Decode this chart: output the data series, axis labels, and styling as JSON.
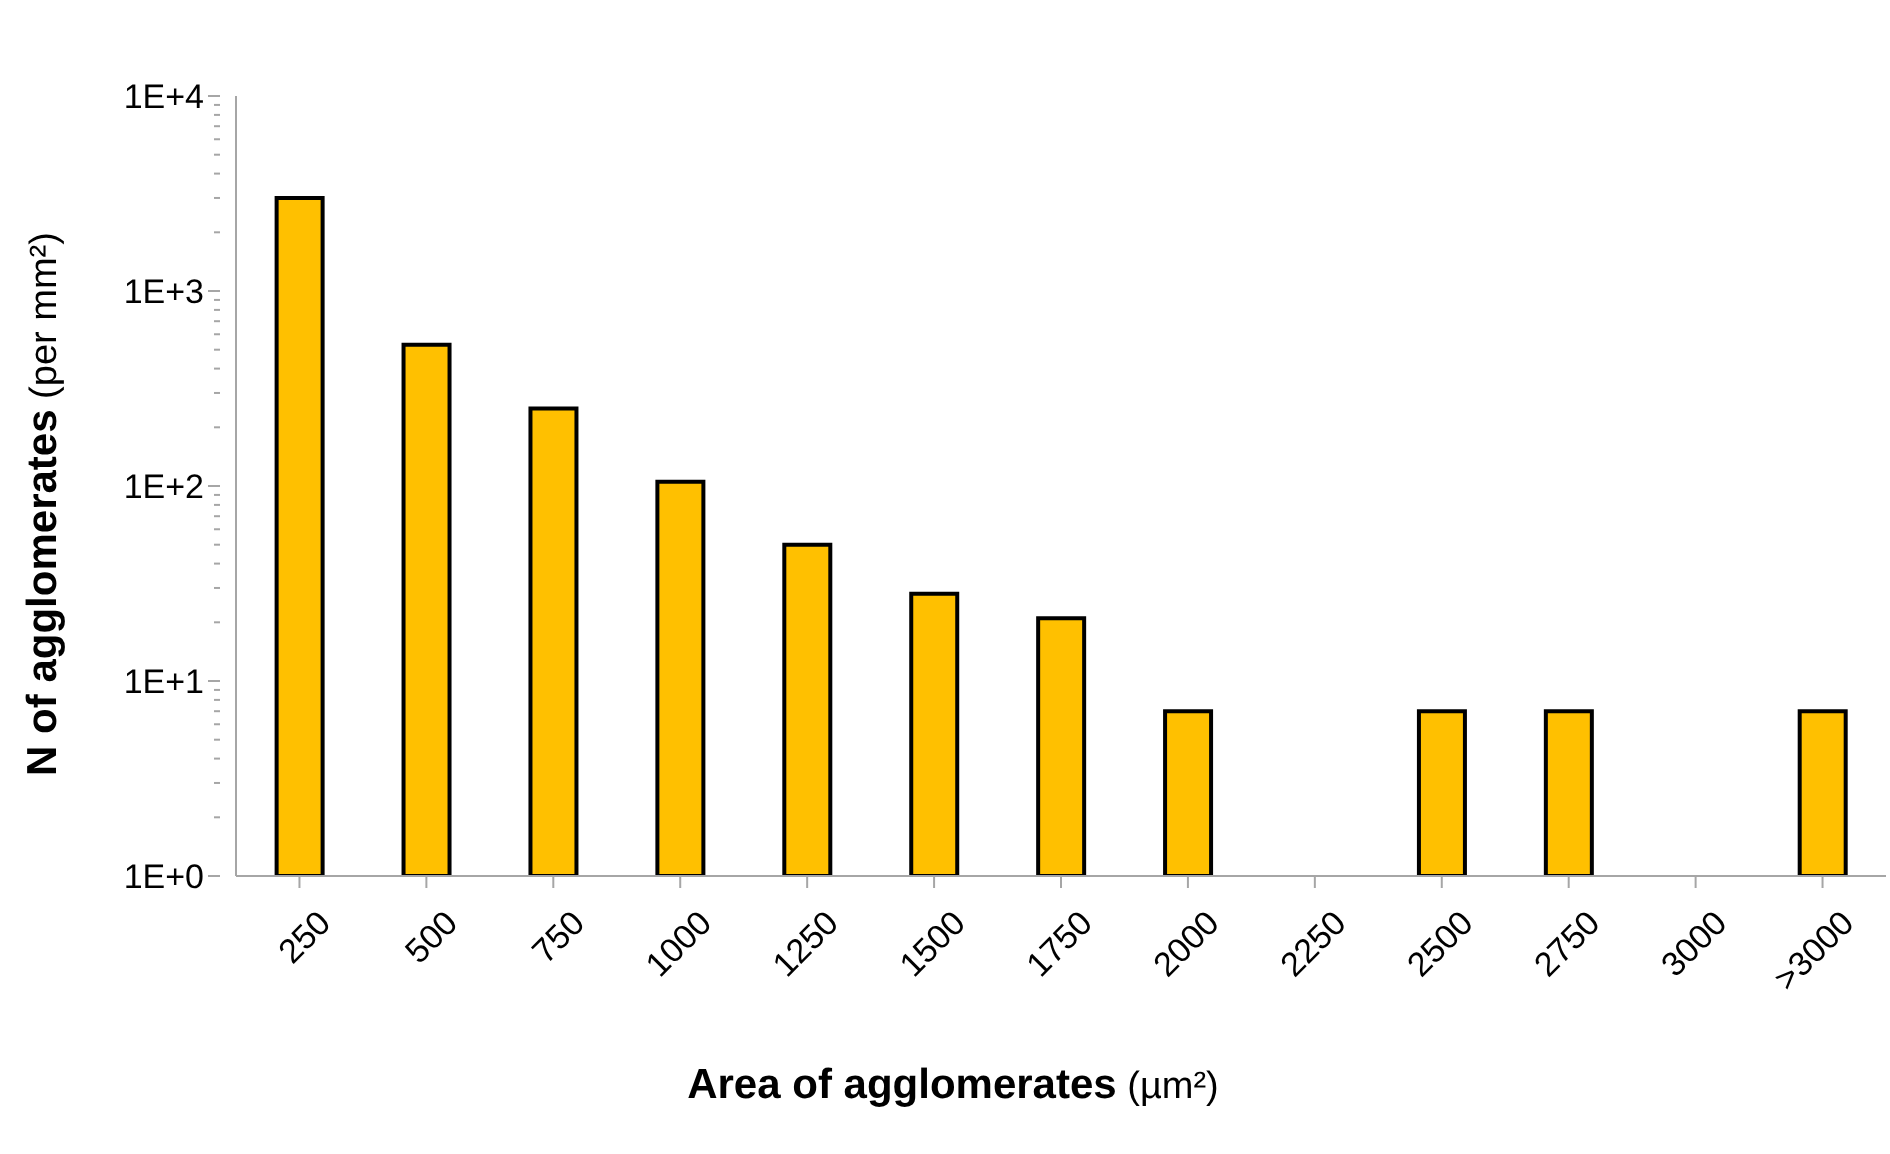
{
  "chart_data": {
    "type": "bar",
    "xlabel": "Area of agglomerates (µm²)",
    "ylabel": "N of agglomerates (per mm²)",
    "categories": [
      "250",
      "500",
      "750",
      "1000",
      "1250",
      "1500",
      "1750",
      "2000",
      "2250",
      "2500",
      "2750",
      "3000",
      ">3000"
    ],
    "values": [
      3000,
      530,
      250,
      105,
      50,
      28,
      21,
      7,
      null,
      7,
      7,
      null,
      7
    ],
    "color": "#ffc000",
    "log": true,
    "ylim": [
      1,
      10000
    ],
    "yticks": [
      {
        "value": 1,
        "label": "1E+0"
      },
      {
        "value": 2,
        "label": null
      },
      {
        "value": 3,
        "label": null
      },
      {
        "value": 4,
        "label": null
      },
      {
        "value": 5,
        "label": null
      },
      {
        "value": 6,
        "label": null
      },
      {
        "value": 7,
        "label": null
      },
      {
        "value": 8,
        "label": null
      },
      {
        "value": 9,
        "label": null
      },
      {
        "value": 10,
        "label": "1E+1"
      },
      {
        "value": 20,
        "label": null
      },
      {
        "value": 30,
        "label": null
      },
      {
        "value": 40,
        "label": null
      },
      {
        "value": 50,
        "label": null
      },
      {
        "value": 60,
        "label": null
      },
      {
        "value": 70,
        "label": null
      },
      {
        "value": 80,
        "label": null
      },
      {
        "value": 90,
        "label": null
      },
      {
        "value": 100,
        "label": "1E+2"
      },
      {
        "value": 200,
        "label": null
      },
      {
        "value": 300,
        "label": null
      },
      {
        "value": 400,
        "label": null
      },
      {
        "value": 500,
        "label": null
      },
      {
        "value": 600,
        "label": null
      },
      {
        "value": 700,
        "label": null
      },
      {
        "value": 800,
        "label": null
      },
      {
        "value": 900,
        "label": null
      },
      {
        "value": 1000,
        "label": "1E+3"
      },
      {
        "value": 2000,
        "label": null
      },
      {
        "value": 3000,
        "label": null
      },
      {
        "value": 4000,
        "label": null
      },
      {
        "value": 5000,
        "label": null
      },
      {
        "value": 6000,
        "label": null
      },
      {
        "value": 7000,
        "label": null
      },
      {
        "value": 8000,
        "label": null
      },
      {
        "value": 9000,
        "label": null
      },
      {
        "value": 10000,
        "label": "1E+4"
      }
    ],
    "grid": false,
    "legend": false
  }
}
